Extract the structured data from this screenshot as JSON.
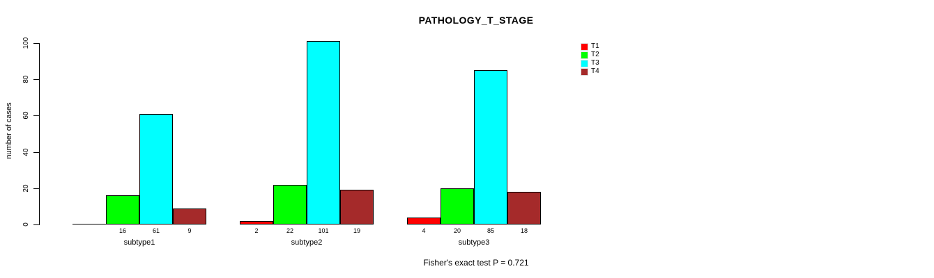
{
  "chart_data": {
    "type": "bar",
    "title": "PATHOLOGY_T_STAGE",
    "ylabel": "number of cases",
    "annotation": "Fisher's exact test P = 0.721",
    "categories": [
      "subtype1",
      "subtype2",
      "subtype3"
    ],
    "series": [
      {
        "name": "T1",
        "color": "#ff0000",
        "values": [
          0,
          2,
          4
        ]
      },
      {
        "name": "T2",
        "color": "#00ff00",
        "values": [
          16,
          22,
          20
        ]
      },
      {
        "name": "T3",
        "color": "#00ffff",
        "values": [
          61,
          101,
          85
        ]
      },
      {
        "name": "T4",
        "color": "#a52a2a",
        "values": [
          9,
          19,
          18
        ]
      }
    ],
    "yticks": [
      0,
      20,
      40,
      60,
      80,
      100
    ],
    "ylim": [
      0,
      100
    ],
    "grid": false,
    "bar_value_labels": true,
    "zero_bars_unlabeled": true,
    "legend_position": "top-right",
    "axis_color": "#000000",
    "bar_border_color": "#000000"
  }
}
